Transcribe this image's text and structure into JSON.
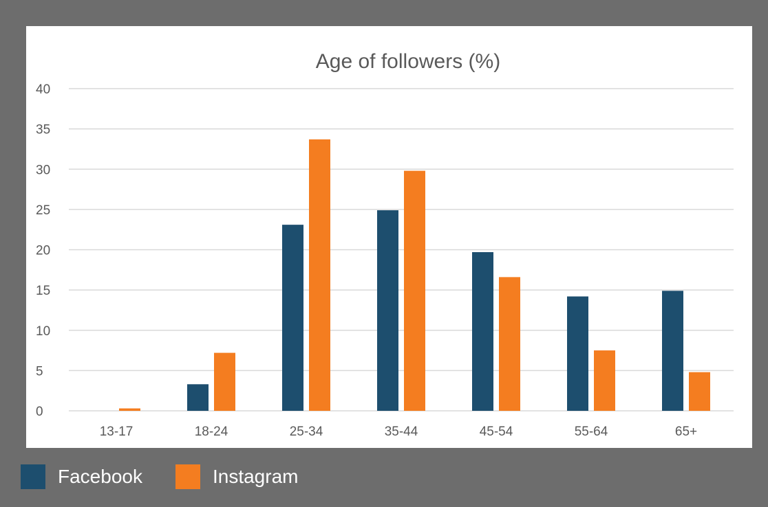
{
  "colors": {
    "background": "#6d6d6d",
    "panel": "#ffffff",
    "gridline": "#d9d9d9",
    "text": "#595959",
    "facebook": "#1d4e6e",
    "instagram": "#f47d20"
  },
  "chart_data": {
    "type": "bar",
    "title": "Age of followers (%)",
    "xlabel": "",
    "ylabel": "",
    "categories": [
      "13-17",
      "18-24",
      "25-34",
      "35-44",
      "45-54",
      "55-64",
      "65+"
    ],
    "series": [
      {
        "name": "Facebook",
        "color": "#1d4e6e",
        "values": [
          0,
          3.3,
          23.1,
          24.9,
          19.7,
          14.2,
          14.9
        ]
      },
      {
        "name": "Instagram",
        "color": "#f47d20",
        "values": [
          0.3,
          7.2,
          33.7,
          29.8,
          16.6,
          7.5,
          4.8
        ]
      }
    ],
    "ylim": [
      0,
      40
    ],
    "yticks": [
      0,
      5,
      10,
      15,
      20,
      25,
      30,
      35,
      40
    ],
    "grid": true,
    "legend_position": "bottom-left"
  },
  "legend": {
    "items": [
      {
        "label": "Facebook",
        "color": "#1d4e6e"
      },
      {
        "label": "Instagram",
        "color": "#f47d20"
      }
    ]
  }
}
